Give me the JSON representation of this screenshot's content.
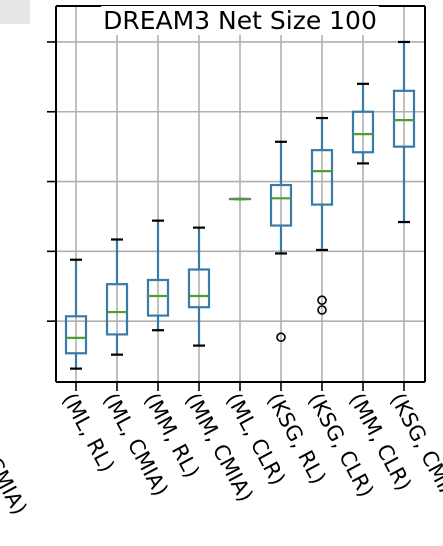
{
  "chart_data": {
    "type": "box",
    "title": "DREAM3 Net Size 100",
    "categories": [
      "(ML, RL)",
      "(ML, CMIA)",
      "(MM, RL)",
      "(MM, CMIA)",
      "(ML, CLR)",
      "(KSG, RL)",
      "(KSG, CLR)",
      "(MM, CLR)",
      "(KSG, CMIA)"
    ],
    "left_cut_label": "CMIA)",
    "boxes": [
      {
        "whislo": 0.532,
        "q1": 0.554,
        "med": 0.576,
        "q3": 0.607,
        "whishi": 0.688,
        "fliers": []
      },
      {
        "whislo": 0.552,
        "q1": 0.581,
        "med": 0.613,
        "q3": 0.653,
        "whishi": 0.717,
        "fliers": []
      },
      {
        "whislo": 0.587,
        "q1": 0.608,
        "med": 0.636,
        "q3": 0.659,
        "whishi": 0.744,
        "fliers": []
      },
      {
        "whislo": 0.565,
        "q1": 0.62,
        "med": 0.636,
        "q3": 0.674,
        "whishi": 0.734,
        "fliers": []
      },
      {
        "whislo": 0.775,
        "q1": 0.775,
        "med": 0.775,
        "q3": 0.775,
        "whishi": 0.775,
        "fliers": []
      },
      {
        "whislo": 0.697,
        "q1": 0.737,
        "med": 0.776,
        "q3": 0.795,
        "whishi": 0.857,
        "fliers": [
          0.577
        ]
      },
      {
        "whislo": 0.702,
        "q1": 0.767,
        "med": 0.815,
        "q3": 0.845,
        "whishi": 0.891,
        "fliers": [
          0.616,
          0.63
        ]
      },
      {
        "whislo": 0.826,
        "q1": 0.842,
        "med": 0.868,
        "q3": 0.9,
        "whishi": 0.94,
        "fliers": []
      },
      {
        "whislo": 0.742,
        "q1": 0.85,
        "med": 0.888,
        "q3": 0.93,
        "whishi": 1.0,
        "fliers": []
      }
    ],
    "ylim": [
      0.52,
      1.02
    ],
    "yticks": [
      0.6,
      0.7,
      0.8,
      0.9,
      1.0
    ],
    "grid": true,
    "colors": {
      "box": "#3a7aa8",
      "median": "#4f9d2f",
      "grid": "#b0b0b0",
      "frame": "#000000"
    }
  }
}
